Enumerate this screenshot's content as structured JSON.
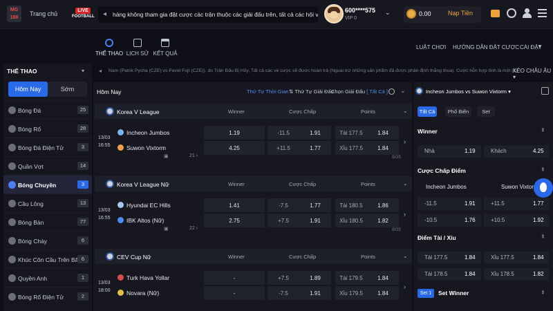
{
  "header": {
    "logo_top": "MG",
    "logo_bottom": "188",
    "home": "Trang chủ",
    "live_label": "LIVE",
    "live_sub": "FOOTBALL",
    "marquee": "hàng không tham gia đặt cược các trận thuộc các giải đấu trên, tất cả các hội viên đặt",
    "username": "600****575",
    "vip": "VIP 0",
    "balance": "0.00",
    "deposit": "Nạp Tiền"
  },
  "subnav": {
    "sports": "THỂ THAO",
    "history": "LỊCH SỬ",
    "results": "KẾT QUẢ",
    "rules": "LUẬT CHƠI",
    "guide": "HƯỚNG DẪN ĐẶT CƯỢC",
    "settings": "CÀI ĐẶT"
  },
  "sidebar": {
    "title": "THỂ THAO",
    "tab_today": "Hôm Nay",
    "tab_early": "Sớm",
    "items": [
      {
        "label": "Bóng Đá",
        "count": "25"
      },
      {
        "label": "Bóng Rổ",
        "count": "28"
      },
      {
        "label": "Bóng Đá Điện Tử",
        "count": "3"
      },
      {
        "label": "Quần Vợt",
        "count": "14"
      },
      {
        "label": "Bóng Chuyền",
        "count": "3"
      },
      {
        "label": "Cầu Lông",
        "count": "13"
      },
      {
        "label": "Bóng Bàn",
        "count": "77"
      },
      {
        "label": "Bóng Chày",
        "count": "6"
      },
      {
        "label": "Khúc Côn Cầu Trên Băng",
        "count": "6"
      },
      {
        "label": "Quyền Anh",
        "count": "1"
      },
      {
        "label": "Bóng Rổ Điện Tử",
        "count": "2"
      }
    ]
  },
  "notice": "Nam (Patrik Pycha (CZE) vs Pavel Fojt (CZE)), do Trận Đấu Bị Hủy, Tất cả các vé cược sẽ được hoàn trả (Ngoại trừ những sản phẩm đã được phân định thắng thua). Cược hỗn hợp tính là một (1)",
  "odds_format": "KÈO CHÂU ÂU ▾",
  "main": {
    "title": "Hôm Nay",
    "sort_time": "Thứ Tự Thời Gian",
    "sort_league": "⇅ Thứ Tự Giải Đấu",
    "league_filter": "Chọn Giải Đấu",
    "league_filter_value": "[ Tất Cả ]",
    "col_winner": "Winner",
    "col_handicap": "Cược Chấp",
    "col_points": "Points",
    "leagues": [
      {
        "name": "Korea V League",
        "match": {
          "date": "13/03",
          "time": "16:55",
          "home": "Incheon Jumbos",
          "away": "Suwon Vixtorm",
          "win_home": "1.19",
          "win_away": "4.25",
          "hc_home_line": "-11.5",
          "hc_home_odds": "1.91",
          "hc_away_line": "+11.5",
          "hc_away_odds": "1.77",
          "over_line": "Tài 177.5",
          "over_odds": "1.84",
          "under_line": "Xỉu 177.5",
          "under_odds": "1.84",
          "more": "21",
          "bo": "BO5"
        }
      },
      {
        "name": "Korea V League Nữ",
        "match": {
          "date": "13/03",
          "time": "16:55",
          "home": "Hyundai EC Hills",
          "away": "IBK Altos (Nữ)",
          "win_home": "1.41",
          "win_away": "2.75",
          "hc_home_line": "-7.5",
          "hc_home_odds": "1.77",
          "hc_away_line": "+7.5",
          "hc_away_odds": "1.91",
          "over_line": "Tài 180.5",
          "over_odds": "1.86",
          "under_line": "Xỉu 180.5",
          "under_odds": "1.82",
          "more": "22",
          "bo": "BO5"
        }
      },
      {
        "name": "CEV Cup Nữ",
        "match": {
          "date": "13/03",
          "time": "18:00",
          "home": "Turk Hava Yollar",
          "away": "Novara (Nữ)",
          "win_home": "-",
          "win_away": "-",
          "hc_home_line": "+7.5",
          "hc_home_odds": "1.89",
          "hc_away_line": "-7.5",
          "hc_away_odds": "1.91",
          "over_line": "Tài 179.5",
          "over_odds": "1.84",
          "under_line": "Xỉu 179.5",
          "under_odds": "1.84",
          "more": "",
          "bo": ""
        }
      }
    ]
  },
  "right_panel": {
    "title": "Incheon Jumbos vs Suwon Vixtorm ▾",
    "tab_all": "Tất Cả",
    "tab_popular": "Phổ Biến",
    "tab_set": "Set",
    "winner_title": "Winner",
    "winner": {
      "home_label": "Nhà",
      "home": "1.19",
      "away_label": "Khách",
      "away": "4.25"
    },
    "hc_title": "Cược Chấp Điểm",
    "hc_home_team": "Incheon Jumbos",
    "hc_away_team": "Suwon Vixtorm",
    "hc_rows": [
      {
        "l1": "-11.5",
        "v1": "1.91",
        "l2": "+11.5",
        "v2": "1.77"
      },
      {
        "l1": "-10.5",
        "v1": "1.76",
        "l2": "+10.5",
        "v2": "1.92"
      }
    ],
    "ou_title": "Điểm Tài / Xỉu",
    "ou_rows": [
      {
        "l1": "Tài 177.5",
        "v1": "1.84",
        "l2": "Xỉu 177.5",
        "v2": "1.84"
      },
      {
        "l1": "Tài 178.5",
        "v1": "1.84",
        "l2": "Xỉu 178.5",
        "v2": "1.82"
      }
    ],
    "set_badge": "Set 1",
    "set_title": "Set Winner"
  }
}
